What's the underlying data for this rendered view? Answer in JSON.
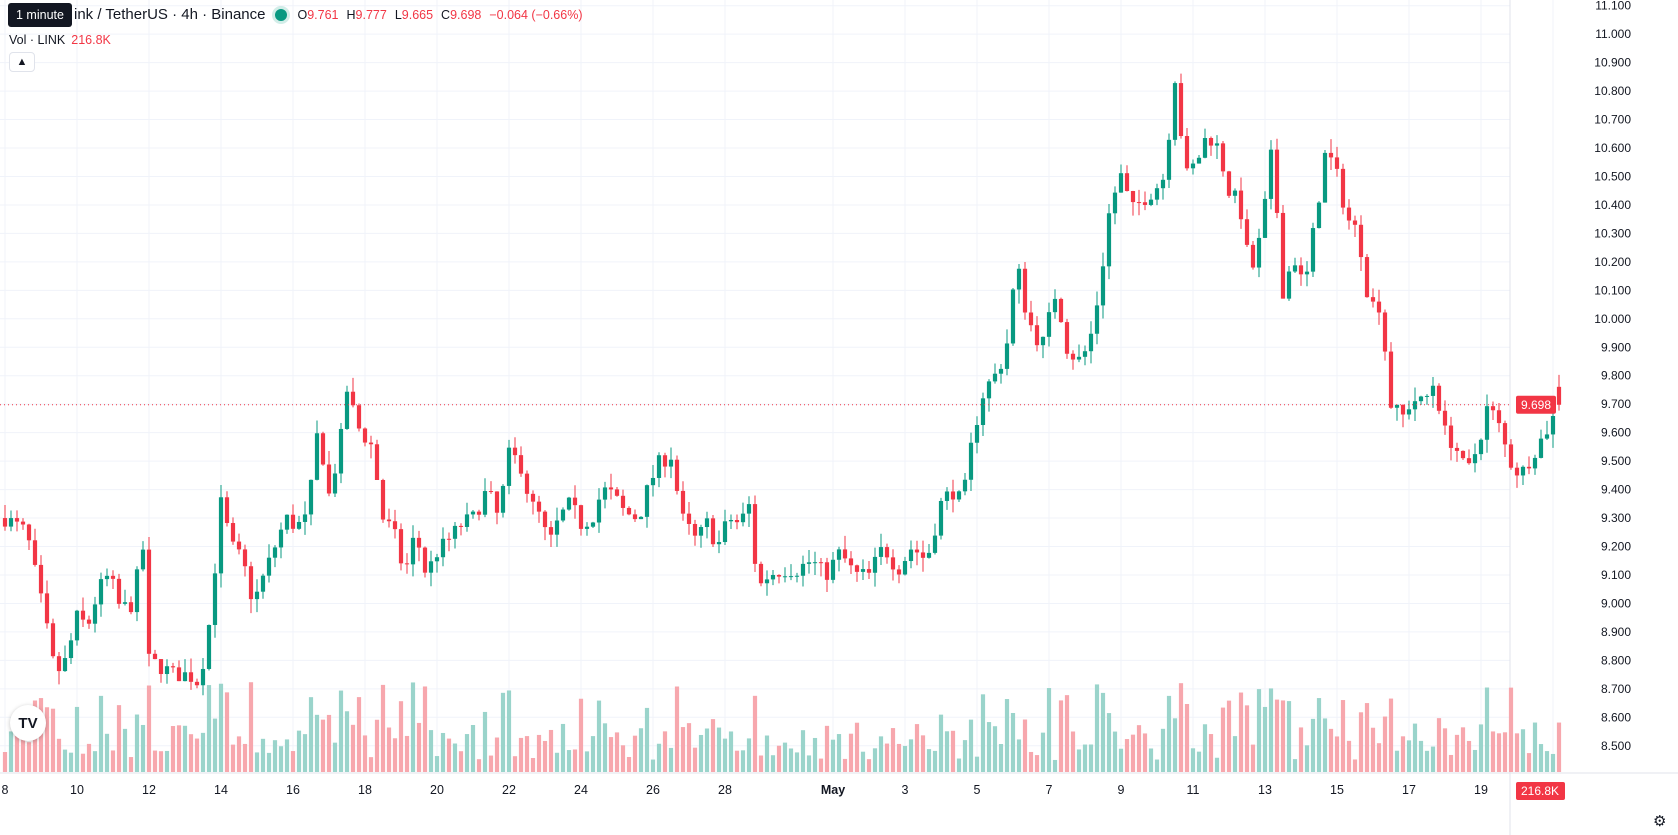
{
  "legend": {
    "title": "ink / TetherUS · 4h · Binance",
    "o_label": "O",
    "o": "9.761",
    "h_label": "H",
    "h": "9.777",
    "l_label": "L",
    "l": "9.665",
    "c_label": "C",
    "c": "9.698",
    "change": "−0.064 (−0.66%)"
  },
  "tooltip": "1 minute",
  "volume_legend": {
    "label": "Vol · LINK",
    "value": "216.8K"
  },
  "logo": "TV",
  "colors": {
    "up": "#089981",
    "down": "#f23645",
    "up_vol": "#9ad4cb",
    "down_vol": "#f7a7ad"
  },
  "chart_data": {
    "type": "candlestick",
    "y_ticks": [
      "11.100",
      "11.000",
      "10.900",
      "10.800",
      "10.700",
      "10.600",
      "10.500",
      "10.400",
      "10.300",
      "10.200",
      "10.100",
      "10.000",
      "9.900",
      "9.800",
      "9.700",
      "9.600",
      "9.500",
      "9.400",
      "9.300",
      "9.200",
      "9.100",
      "9.000",
      "8.900",
      "8.800",
      "8.700",
      "8.600",
      "8.500"
    ],
    "ylim": [
      8.45,
      11.12
    ],
    "x_ticks": [
      {
        "label": "8",
        "day": 8
      },
      {
        "label": "10",
        "day": 10
      },
      {
        "label": "12",
        "day": 12
      },
      {
        "label": "14",
        "day": 14
      },
      {
        "label": "16",
        "day": 16
      },
      {
        "label": "18",
        "day": 18
      },
      {
        "label": "20",
        "day": 20
      },
      {
        "label": "22",
        "day": 22
      },
      {
        "label": "24",
        "day": 24
      },
      {
        "label": "26",
        "day": 26
      },
      {
        "label": "28",
        "day": 28
      },
      {
        "label": "May",
        "day": 31
      },
      {
        "label": "3",
        "day": 33
      },
      {
        "label": "5",
        "day": 35
      },
      {
        "label": "7",
        "day": 37
      },
      {
        "label": "9",
        "day": 39
      },
      {
        "label": "11",
        "day": 41
      },
      {
        "label": "13",
        "day": 43
      },
      {
        "label": "15",
        "day": 45
      },
      {
        "label": "17",
        "day": 47
      },
      {
        "label": "19",
        "day": 49
      },
      {
        "label": "21",
        "day": 51
      }
    ],
    "last_price": "9.698",
    "last_volume": "216.8K",
    "close_keypoints": [
      [
        8.0,
        9.3
      ],
      [
        8.6,
        9.25
      ],
      [
        9.1,
        8.95
      ],
      [
        9.4,
        8.75
      ],
      [
        9.7,
        8.8
      ],
      [
        10.0,
        8.95
      ],
      [
        10.3,
        8.92
      ],
      [
        10.6,
        9.05
      ],
      [
        10.9,
        9.1
      ],
      [
        11.2,
        8.98
      ],
      [
        11.6,
        9.0
      ],
      [
        11.8,
        9.27
      ],
      [
        12.0,
        8.8
      ],
      [
        12.3,
        8.78
      ],
      [
        12.7,
        8.75
      ],
      [
        13.1,
        8.75
      ],
      [
        13.4,
        8.72
      ],
      [
        13.7,
        8.95
      ],
      [
        14.0,
        9.35
      ],
      [
        14.3,
        9.2
      ],
      [
        14.6,
        9.15
      ],
      [
        14.9,
        9.0
      ],
      [
        15.2,
        9.1
      ],
      [
        15.5,
        9.2
      ],
      [
        15.8,
        9.3
      ],
      [
        16.1,
        9.27
      ],
      [
        16.4,
        9.3
      ],
      [
        16.7,
        9.62
      ],
      [
        17.0,
        9.38
      ],
      [
        17.3,
        9.55
      ],
      [
        17.5,
        9.75
      ],
      [
        17.8,
        9.62
      ],
      [
        18.2,
        9.55
      ],
      [
        18.5,
        9.3
      ],
      [
        18.8,
        9.25
      ],
      [
        19.1,
        9.1
      ],
      [
        19.4,
        9.25
      ],
      [
        19.7,
        9.1
      ],
      [
        20.0,
        9.18
      ],
      [
        20.3,
        9.22
      ],
      [
        20.7,
        9.28
      ],
      [
        21.0,
        9.3
      ],
      [
        21.4,
        9.4
      ],
      [
        21.7,
        9.3
      ],
      [
        22.0,
        9.52
      ],
      [
        22.3,
        9.5
      ],
      [
        22.6,
        9.35
      ],
      [
        22.9,
        9.3
      ],
      [
        23.1,
        9.2
      ],
      [
        23.4,
        9.3
      ],
      [
        23.7,
        9.35
      ],
      [
        24.0,
        9.28
      ],
      [
        24.3,
        9.3
      ],
      [
        24.6,
        9.4
      ],
      [
        24.9,
        9.38
      ],
      [
        25.2,
        9.32
      ],
      [
        25.6,
        9.3
      ],
      [
        25.9,
        9.42
      ],
      [
        26.2,
        9.5
      ],
      [
        26.5,
        9.52
      ],
      [
        26.8,
        9.3
      ],
      [
        27.2,
        9.22
      ],
      [
        27.5,
        9.28
      ],
      [
        27.8,
        9.2
      ],
      [
        28.1,
        9.3
      ],
      [
        28.4,
        9.28
      ],
      [
        28.7,
        9.35
      ],
      [
        28.9,
        9.05
      ],
      [
        29.2,
        9.1
      ],
      [
        29.6,
        9.12
      ],
      [
        30.0,
        9.12
      ],
      [
        30.4,
        9.15
      ],
      [
        30.8,
        9.1
      ],
      [
        31.2,
        9.18
      ],
      [
        31.6,
        9.1
      ],
      [
        32.0,
        9.1
      ],
      [
        32.4,
        9.2
      ],
      [
        32.8,
        9.12
      ],
      [
        33.2,
        9.2
      ],
      [
        33.6,
        9.15
      ],
      [
        34.0,
        9.35
      ],
      [
        34.3,
        9.4
      ],
      [
        34.6,
        9.35
      ],
      [
        34.9,
        9.6
      ],
      [
        35.2,
        9.75
      ],
      [
        35.5,
        9.8
      ],
      [
        35.8,
        9.88
      ],
      [
        36.1,
        10.2
      ],
      [
        36.4,
        10.0
      ],
      [
        36.8,
        9.9
      ],
      [
        37.2,
        10.1
      ],
      [
        37.5,
        9.9
      ],
      [
        37.8,
        9.85
      ],
      [
        38.1,
        9.9
      ],
      [
        38.4,
        10.1
      ],
      [
        38.7,
        10.4
      ],
      [
        39.0,
        10.5
      ],
      [
        39.3,
        10.38
      ],
      [
        39.6,
        10.42
      ],
      [
        39.9,
        10.45
      ],
      [
        40.2,
        10.5
      ],
      [
        40.5,
        10.85
      ],
      [
        40.8,
        10.5
      ],
      [
        41.1,
        10.55
      ],
      [
        41.4,
        10.65
      ],
      [
        41.7,
        10.6
      ],
      [
        42.0,
        10.45
      ],
      [
        42.3,
        10.4
      ],
      [
        42.6,
        10.15
      ],
      [
        42.9,
        10.3
      ],
      [
        43.2,
        10.6
      ],
      [
        43.5,
        10.1
      ],
      [
        43.8,
        10.22
      ],
      [
        44.1,
        10.1
      ],
      [
        44.4,
        10.35
      ],
      [
        44.7,
        10.6
      ],
      [
        45.0,
        10.5
      ],
      [
        45.3,
        10.35
      ],
      [
        45.6,
        10.3
      ],
      [
        45.9,
        10.05
      ],
      [
        46.2,
        10.05
      ],
      [
        46.5,
        9.7
      ],
      [
        46.8,
        9.65
      ],
      [
        47.1,
        9.72
      ],
      [
        47.4,
        9.7
      ],
      [
        47.7,
        9.78
      ],
      [
        48.0,
        9.6
      ],
      [
        48.3,
        9.55
      ],
      [
        48.6,
        9.45
      ],
      [
        48.9,
        9.55
      ],
      [
        49.2,
        9.7
      ],
      [
        49.5,
        9.62
      ],
      [
        49.8,
        9.5
      ],
      [
        50.1,
        9.45
      ],
      [
        50.4,
        9.52
      ],
      [
        50.7,
        9.58
      ],
      [
        51.0,
        9.65
      ],
      [
        51.2,
        9.698
      ]
    ]
  }
}
